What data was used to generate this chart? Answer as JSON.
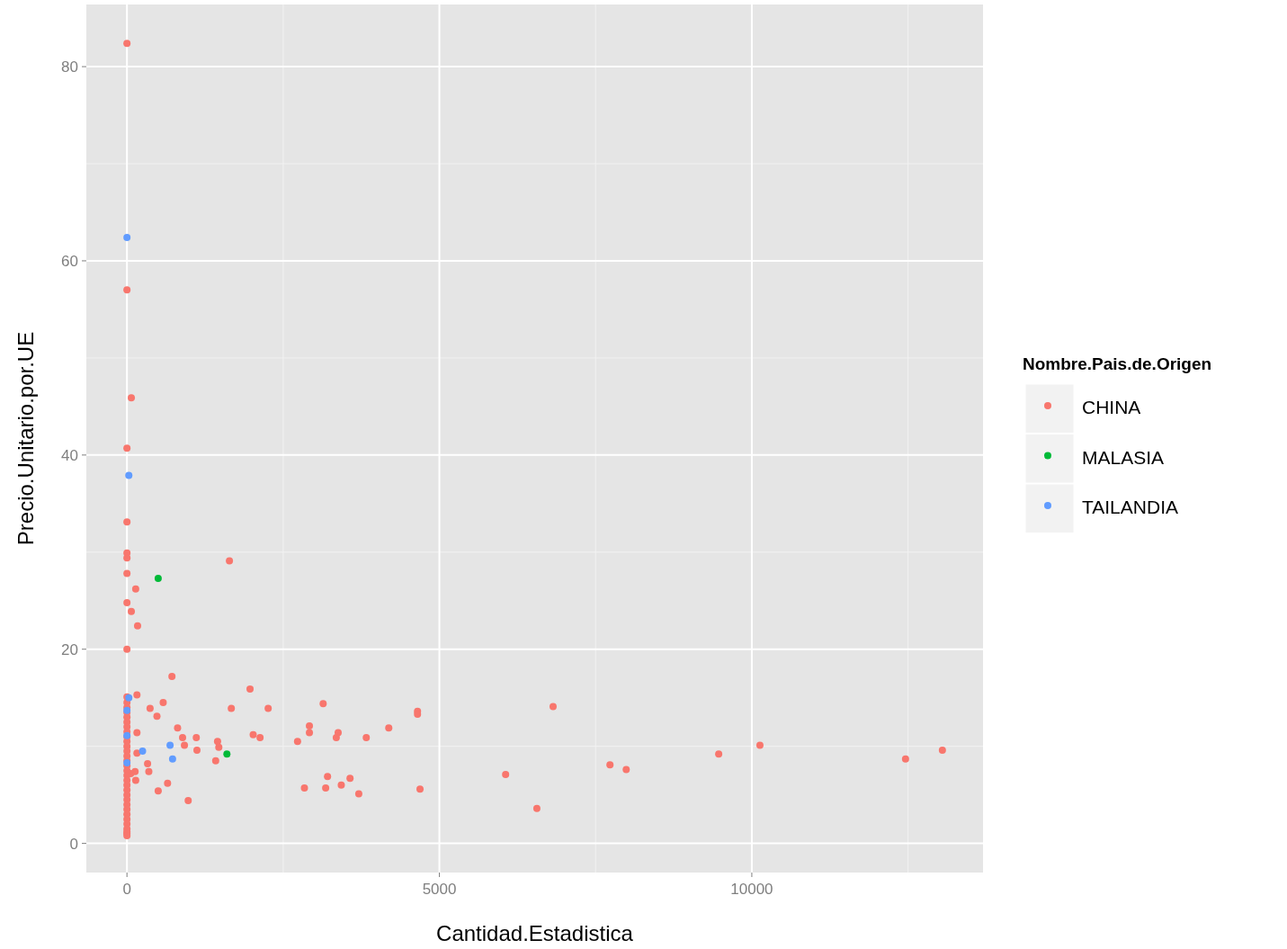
{
  "chart_data": {
    "type": "scatter",
    "xlabel": "Cantidad.Estadistica",
    "ylabel": "Precio.Unitario.por.UE",
    "legend_title": "Nombre.Pais.de.Origen",
    "legend": "right",
    "grid": true,
    "marker": "circle",
    "xlim": [
      -650,
      13700
    ],
    "xticks": [
      0,
      5000,
      10000
    ],
    "ylim": [
      -3,
      86.4
    ],
    "yticks": [
      0,
      20,
      40,
      60,
      80
    ],
    "series": [
      {
        "name": "CHINA",
        "color": "#f8766d",
        "x": [
          0,
          0,
          70,
          0,
          0,
          0,
          0,
          0,
          0,
          70,
          140,
          170,
          0,
          1640,
          720,
          1970,
          160,
          580,
          0,
          3140,
          6820,
          370,
          1670,
          2260,
          480,
          4650,
          4650,
          810,
          4190,
          2920,
          2920,
          3380,
          3350,
          2020,
          2130,
          890,
          1110,
          3830,
          2730,
          1450,
          920,
          1120,
          1470,
          1420,
          160,
          10130,
          13050,
          9470,
          12460,
          7730,
          7990,
          6060,
          330,
          350,
          130,
          140,
          3210,
          3570,
          3430,
          3180,
          2840,
          3710,
          4690,
          500,
          650,
          980,
          6560,
          160,
          60,
          0,
          0,
          0,
          0,
          0,
          0,
          0,
          0,
          0,
          0,
          0,
          0,
          0,
          0,
          0,
          0,
          0,
          0,
          0,
          0,
          0,
          0,
          0,
          0,
          0,
          0,
          0,
          0,
          0,
          0
        ],
        "values": [
          82.4,
          57,
          45.9,
          40.7,
          33.1,
          29.9,
          29.4,
          27.8,
          24.8,
          23.9,
          26.2,
          22.4,
          20,
          29.1,
          17.2,
          15.9,
          15.3,
          14.5,
          15.1,
          14.4,
          14.1,
          13.9,
          13.9,
          13.9,
          13.1,
          13.6,
          13.3,
          11.9,
          11.9,
          12.1,
          11.4,
          11.4,
          10.9,
          11.2,
          10.9,
          10.9,
          10.9,
          10.9,
          10.5,
          10.5,
          10.1,
          9.6,
          9.9,
          8.5,
          11.4,
          10.1,
          9.6,
          9.2,
          8.7,
          8.1,
          7.6,
          7.1,
          8.2,
          7.4,
          7.4,
          6.5,
          6.9,
          6.7,
          6,
          5.7,
          5.7,
          5.1,
          5.6,
          5.4,
          6.2,
          4.4,
          3.6,
          9.3,
          7.2,
          14.5,
          14,
          13.5,
          13,
          12.5,
          12,
          11.5,
          11,
          10.5,
          10,
          9.5,
          9,
          8.5,
          8,
          7.5,
          7,
          6.5,
          6,
          5.5,
          5,
          4.5,
          4,
          3.5,
          3,
          2.5,
          2,
          1.5,
          1.2,
          1,
          0.8
        ]
      },
      {
        "name": "MALASIA",
        "color": "#00ba38",
        "x": [
          500,
          1600
        ],
        "values": [
          27.3,
          9.2
        ]
      },
      {
        "name": "TAILANDIA",
        "color": "#619cff",
        "x": [
          0,
          30,
          30,
          250,
          690,
          730,
          0,
          0,
          0
        ],
        "values": [
          62.4,
          37.9,
          15,
          9.5,
          10.1,
          8.7,
          13.7,
          11.1,
          8.3
        ]
      }
    ]
  }
}
